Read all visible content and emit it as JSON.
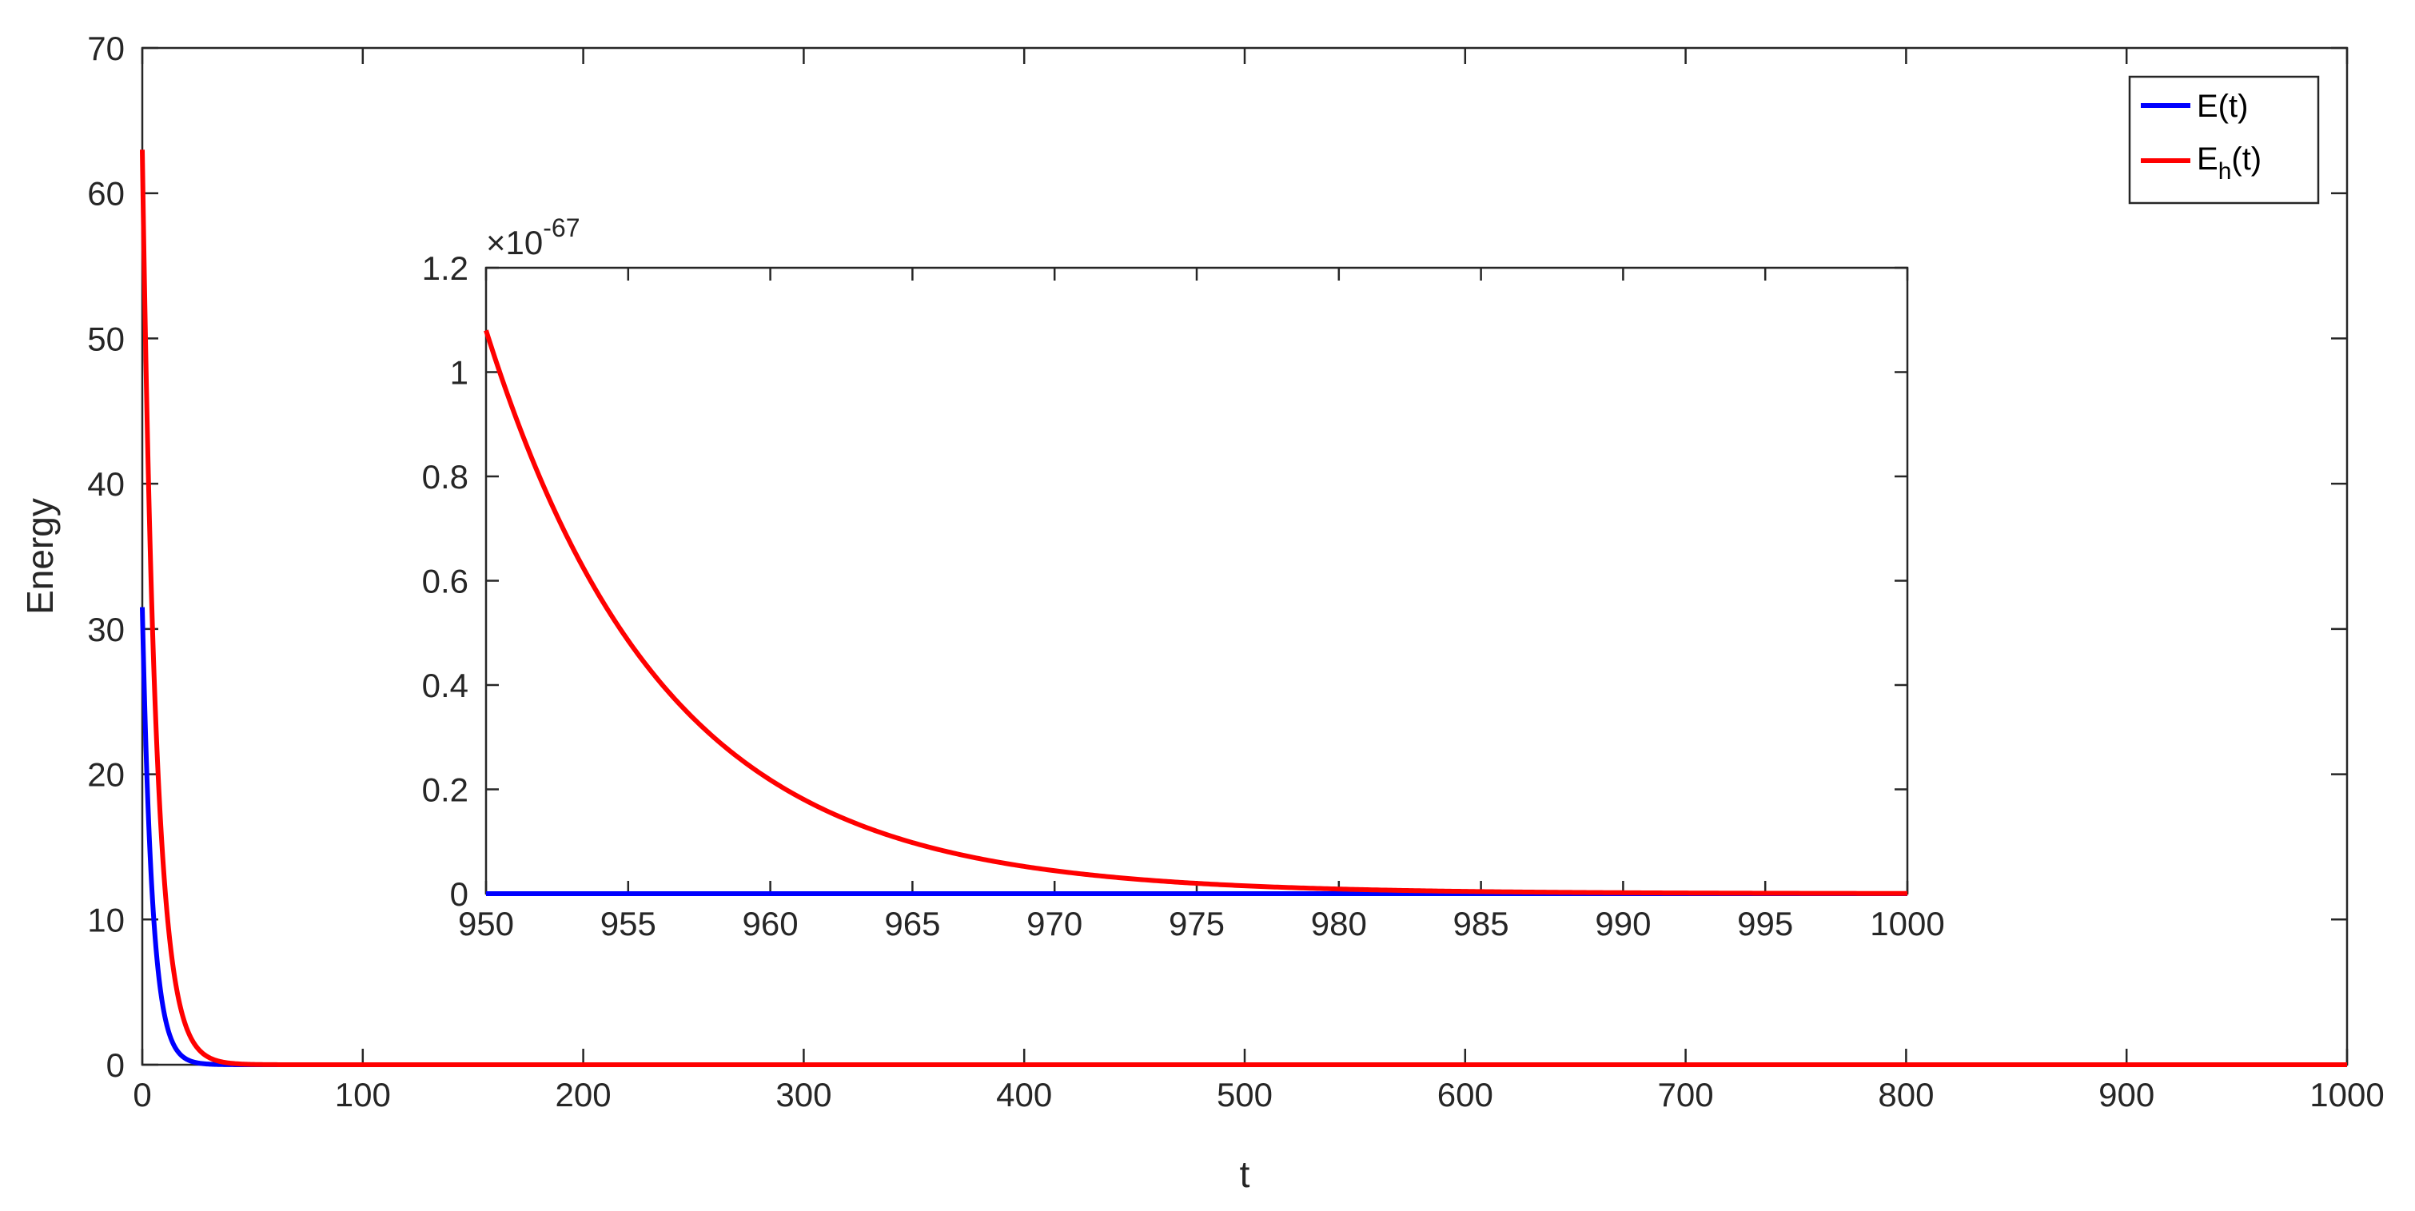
{
  "chart_data": [
    {
      "id": "main",
      "type": "line",
      "title": "",
      "xlabel": "t",
      "ylabel": "Energy",
      "xlim": [
        0,
        1000
      ],
      "ylim": [
        0,
        70
      ],
      "xticks": [
        0,
        100,
        200,
        300,
        400,
        500,
        600,
        700,
        800,
        900,
        1000
      ],
      "xtick_labels": [
        "0",
        "100",
        "200",
        "300",
        "400",
        "500",
        "600",
        "700",
        "800",
        "900",
        "1000"
      ],
      "yticks": [
        0,
        10,
        20,
        30,
        40,
        50,
        60,
        70
      ],
      "ytick_labels": [
        "0",
        "10",
        "20",
        "30",
        "40",
        "50",
        "60",
        "70"
      ],
      "grid": false,
      "legend_position": "top-right",
      "legend": [
        {
          "base": "E(t)",
          "sub": "",
          "tail": "",
          "color": "#0000ff"
        },
        {
          "base": "E",
          "sub": "h",
          "tail": "(t)",
          "color": "#ff0000"
        }
      ],
      "series": [
        {
          "name": "E(t)",
          "color": "#0000ff",
          "initial": 31.5,
          "decay_rate": 0.22,
          "x_start": 0,
          "x_end": 1000
        },
        {
          "name": "E_h(t)",
          "color": "#ff0000",
          "initial": 63.0,
          "decay_rate": 0.16,
          "x_start": 0,
          "x_end": 1000
        }
      ]
    },
    {
      "id": "inset",
      "type": "line",
      "title": "",
      "xlabel": "",
      "ylabel": "",
      "xlim": [
        950,
        1000
      ],
      "ylim": [
        0,
        1.2
      ],
      "y_exponent_base": "×10",
      "y_exponent_power": "-67",
      "xticks": [
        950,
        955,
        960,
        965,
        970,
        975,
        980,
        985,
        990,
        995,
        1000
      ],
      "xtick_labels": [
        "950",
        "955",
        "960",
        "965",
        "970",
        "975",
        "980",
        "985",
        "990",
        "995",
        "1000"
      ],
      "yticks": [
        0,
        0.2,
        0.4,
        0.6,
        0.8,
        1,
        1.2
      ],
      "ytick_labels": [
        "0",
        "0.2",
        "0.4",
        "0.6",
        "0.8",
        "1",
        "1.2"
      ],
      "grid": false,
      "series": [
        {
          "name": "E(t)",
          "color": "#0000ff",
          "initial": 0.0,
          "decay_rate": 0.16,
          "x_start": 950,
          "x_end": 1000
        },
        {
          "name": "E_h(t)",
          "color": "#ff0000",
          "initial": 1.08,
          "decay_rate": 0.16,
          "x_start": 950,
          "x_end": 1000
        }
      ]
    }
  ]
}
